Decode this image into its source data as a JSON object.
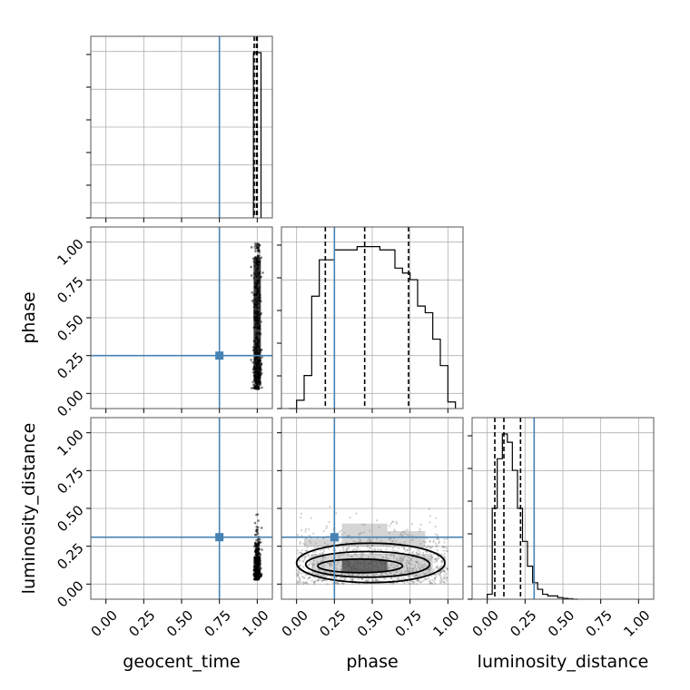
{
  "chart_data": {
    "type": "corner",
    "parameters": [
      "geocent_time",
      "phase",
      "luminosity_distance"
    ],
    "axis_labels": {
      "x": [
        "geocent_time",
        "phase",
        "luminosity_distance"
      ],
      "y": [
        "phase",
        "luminosity_distance"
      ]
    },
    "tick_labels": [
      "0.00",
      "0.25",
      "0.50",
      "0.75",
      "1.00"
    ],
    "tick_values": [
      0,
      0.25,
      0.5,
      0.75,
      1.0
    ],
    "axis_ranges": {
      "geocent_time": [
        -0.1,
        1.1
      ],
      "phase": [
        -0.1,
        1.1
      ],
      "luminosity_distance": [
        -0.1,
        1.1
      ]
    },
    "grid": true,
    "injection_values": {
      "geocent_time": 0.75,
      "phase": 0.25,
      "luminosity_distance": 0.31
    },
    "colors": {
      "injection": "#4682b4",
      "hist": "#000000",
      "grid": "#b0b0b0",
      "frame": "#555555"
    },
    "histograms": {
      "geocent_time": {
        "bins": [
          0.975,
          1.0,
          1.025
        ],
        "counts": [
          1.0,
          1.0
        ],
        "quantiles": [
          0.98,
          0.995,
          1.0
        ]
      },
      "phase": {
        "bins": [
          -0.05,
          0.0,
          0.05,
          0.1,
          0.15,
          0.2,
          0.25,
          0.3,
          0.35,
          0.4,
          0.45,
          0.5,
          0.55,
          0.6,
          0.65,
          0.7,
          0.75,
          0.8,
          0.85,
          0.9,
          0.95,
          1.0,
          1.05
        ],
        "counts": [
          0.0,
          0.05,
          0.2,
          0.68,
          0.9,
          0.9,
          0.96,
          0.96,
          0.96,
          0.98,
          0.98,
          0.98,
          0.96,
          0.96,
          0.85,
          0.82,
          0.78,
          0.62,
          0.58,
          0.42,
          0.26,
          0.04
        ],
        "quantiles": [
          0.19,
          0.45,
          0.74
        ]
      },
      "luminosity_distance": {
        "bins": [
          0.0,
          0.033,
          0.066,
          0.1,
          0.133,
          0.166,
          0.2,
          0.233,
          0.266,
          0.3,
          0.333,
          0.366,
          0.4,
          0.433,
          0.466,
          0.5,
          0.533,
          0.566,
          0.6
        ],
        "counts": [
          0.03,
          0.55,
          0.85,
          1.0,
          0.95,
          0.78,
          0.55,
          0.35,
          0.2,
          0.1,
          0.06,
          0.03,
          0.02,
          0.02,
          0.01,
          0.005,
          0.003,
          0.0
        ],
        "quantiles": [
          0.05,
          0.11,
          0.22
        ]
      }
    },
    "scatter_2d": [
      {
        "x": "geocent_time",
        "y": "phase",
        "x_center": 1.0,
        "x_spread": 0.012,
        "y_range": [
          0.03,
          0.99
        ]
      },
      {
        "x": "geocent_time",
        "y": "luminosity_distance",
        "x_center": 1.0,
        "x_spread": 0.01,
        "y_range": [
          0.03,
          0.58
        ]
      },
      {
        "x": "phase",
        "y": "luminosity_distance",
        "x_range": [
          0.0,
          1.0
        ],
        "y_range": [
          0.0,
          0.6
        ],
        "density_peak": [
          0.45,
          0.12
        ]
      }
    ]
  }
}
